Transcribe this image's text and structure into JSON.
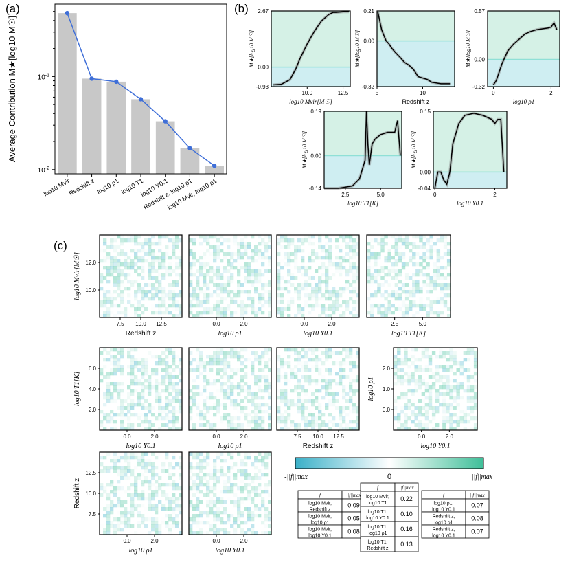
{
  "panel_labels": {
    "a": "(a)",
    "b": "(b)",
    "c": "(c)"
  },
  "colors": {
    "bar": "#c8c8c8",
    "line": "#3f6fd8",
    "pos_fill": "#d5f1e6",
    "neg_fill": "#cfeef2",
    "zero_line": "#8fe0d6",
    "pos": "#3fbf99",
    "neg": "#3ab0c8",
    "curve": "#000000",
    "band": "#888888"
  },
  "chart_data": [
    {
      "type": "bar",
      "panel": "(a)",
      "ylabel": "Average Contribution M★[log10 M☉]",
      "yscale": "log",
      "ylim": [
        0.009,
        0.6
      ],
      "ytick_labels": [
        "10^-2",
        "10^-1"
      ],
      "categories": [
        "log10 Mvir",
        "Redshift z",
        "log10 ρ1",
        "log10 T1",
        "log10 Υ0.1",
        "Redshift z, log10 ρ1",
        "log10 Mvir, log10 ρ1"
      ],
      "values": [
        0.48,
        0.095,
        0.088,
        0.057,
        0.033,
        0.017,
        0.011
      ],
      "series": [
        {
          "values": [
            0.48,
            0.095,
            0.088,
            0.057,
            0.033,
            0.017,
            0.011
          ]
        }
      ]
    },
    {
      "type": "line",
      "panel": "(b)",
      "subplots": [
        {
          "xlabel": "log10 Mvir[M☉]",
          "ylabel": "M★[log10 M☉]",
          "xlim": [
            7.5,
            13
          ],
          "ylim": [
            -0.93,
            2.67
          ],
          "xticks": [
            "10.0",
            "12.5"
          ],
          "yticks": [
            "2.67",
            "0.00",
            "-0.93"
          ],
          "x": [
            7.6,
            8.2,
            8.8,
            9.2,
            9.5,
            10.0,
            10.5,
            11.0,
            11.5,
            11.8,
            12.0,
            12.5,
            12.9
          ],
          "y": [
            -0.85,
            -0.82,
            -0.6,
            -0.1,
            0.4,
            1.1,
            1.7,
            2.2,
            2.5,
            2.6,
            2.6,
            2.63,
            2.63
          ]
        },
        {
          "xlabel": "Redshift z",
          "ylabel": "M★[log10 M☉]",
          "xlim": [
            5,
            13.5
          ],
          "ylim": [
            -0.32,
            0.21
          ],
          "xticks": [
            "5",
            "10"
          ],
          "yticks": [
            "0.21",
            "0.00",
            "-0.32"
          ],
          "x": [
            5.1,
            5.3,
            5.5,
            5.8,
            6.0,
            6.3,
            6.6,
            7.0,
            7.3,
            7.6,
            8.0,
            8.5,
            9.0,
            9.5,
            10.0,
            10.5,
            11.0,
            12.0,
            13.0
          ],
          "y": [
            0.2,
            0.14,
            0.08,
            0.03,
            0.0,
            -0.02,
            -0.05,
            -0.08,
            -0.1,
            -0.12,
            -0.15,
            -0.17,
            -0.2,
            -0.25,
            -0.26,
            -0.27,
            -0.29,
            -0.3,
            -0.3
          ]
        },
        {
          "xlabel": "log10 ρ1",
          "ylabel": "M★[log10 M☉]",
          "xlim": [
            -0.2,
            2.3
          ],
          "ylim": [
            -0.32,
            0.57
          ],
          "xticks": [
            "0",
            "2"
          ],
          "yticks": [
            "0.57",
            "0.00",
            "-0.32"
          ],
          "x": [
            0.0,
            0.1,
            0.2,
            0.3,
            0.5,
            0.7,
            0.9,
            1.1,
            1.3,
            1.5,
            1.7,
            1.9,
            2.0,
            2.1,
            2.2
          ],
          "y": [
            -0.3,
            -0.25,
            -0.15,
            -0.05,
            0.1,
            0.18,
            0.24,
            0.3,
            0.33,
            0.35,
            0.36,
            0.37,
            0.38,
            0.43,
            0.35
          ]
        },
        {
          "xlabel": "log10 T1[K]",
          "ylabel": "M★[log10 M☉]",
          "xlim": [
            1.0,
            6.5
          ],
          "ylim": [
            -0.14,
            0.19
          ],
          "xticks": [
            "2.5",
            "5.0"
          ],
          "yticks": [
            "0.19",
            "0.00",
            "-0.14"
          ],
          "x": [
            1.0,
            2.0,
            3.0,
            3.5,
            3.9,
            4.0,
            4.1,
            4.2,
            4.4,
            4.6,
            4.8,
            5.0,
            5.5,
            6.0,
            6.2,
            6.4
          ],
          "y": [
            -0.14,
            -0.14,
            -0.13,
            -0.1,
            -0.02,
            0.19,
            0.05,
            -0.04,
            0.05,
            0.07,
            0.08,
            0.09,
            0.1,
            0.1,
            0.15,
            0.0
          ]
        },
        {
          "xlabel": "log10 Υ0.1",
          "ylabel": "M★[log10 M☉]",
          "xlim": [
            -0.05,
            2.4
          ],
          "ylim": [
            -0.04,
            0.15
          ],
          "xticks": [
            "0",
            "2"
          ],
          "yticks": [
            "0.15",
            "0.00",
            "-0.04"
          ],
          "x": [
            0.0,
            0.1,
            0.2,
            0.3,
            0.4,
            0.5,
            0.6,
            0.8,
            1.0,
            1.3,
            1.6,
            1.9,
            2.0,
            2.1,
            2.2,
            2.3
          ],
          "y": [
            -0.04,
            0.0,
            0.0,
            -0.02,
            -0.03,
            0.0,
            0.07,
            0.12,
            0.14,
            0.145,
            0.14,
            0.13,
            0.12,
            0.13,
            0.13,
            0.0
          ]
        }
      ]
    },
    {
      "type": "heatmap",
      "panel": "(c)",
      "colorbar": {
        "min_label": "-||f||max",
        "mid_label": "0",
        "max_label": "||f||max"
      },
      "subplots": [
        {
          "xlabel": "Redshift z",
          "ylabel": "log10 Mvir[M☉]",
          "xticks": [
            "7.5",
            "10.0",
            "12.5"
          ],
          "yticks": [
            "12.0",
            "10.0"
          ]
        },
        {
          "xlabel": "log10 ρ1",
          "xticks": [
            "0.0",
            "2.0"
          ]
        },
        {
          "xlabel": "log10 Υ0.1",
          "xticks": [
            "0.0",
            "2.0"
          ]
        },
        {
          "xlabel": "log10 T1[K]",
          "xticks": [
            "2.5",
            "5.0"
          ]
        },
        {
          "xlabel": "log10 Υ0.1",
          "ylabel": "log10 T1[K]",
          "xticks": [
            "0.0",
            "2.0"
          ],
          "yticks": [
            "6.0",
            "4.0",
            "2.0"
          ]
        },
        {
          "xlabel": "log10 ρ1",
          "xticks": [
            "0.0",
            "2.0"
          ]
        },
        {
          "xlabel": "Redshift z",
          "xticks": [
            "7.5",
            "10.0",
            "12.5"
          ]
        },
        {
          "xlabel": "log10 Υ0.1",
          "ylabel": "log10 ρ1",
          "xticks": [
            "0.0",
            "2.0"
          ],
          "yticks": [
            "2.0",
            "1.0",
            "0.0"
          ]
        },
        {
          "xlabel": "log10 ρ1",
          "ylabel": "Redshift z",
          "xticks": [
            "0.0",
            "2.0"
          ],
          "yticks": [
            "12.5",
            "10.0",
            "7.5"
          ]
        },
        {
          "xlabel": "log10 Υ0.1",
          "xticks": [
            "0.0",
            "2.0"
          ]
        }
      ]
    },
    {
      "type": "table",
      "panel": "(c)",
      "header": [
        "f",
        "||f||max"
      ],
      "tables": [
        {
          "rows": [
            [
              "log10 Mvir, Redshift z",
              "0.09"
            ],
            [
              "log10 Mvir, log10 ρ1",
              "0.05"
            ],
            [
              "log10 Mvir, log10 Υ0.1",
              "0.08"
            ]
          ]
        },
        {
          "rows": [
            [
              "log10 Mvir, log10 T1",
              "0.22"
            ],
            [
              "log10 T1, log10 Υ0.1",
              "0.10"
            ],
            [
              "log10 T1, log10 ρ1",
              "0.16"
            ],
            [
              "log10 T1, Redshift z",
              "0.13"
            ]
          ]
        },
        {
          "rows": [
            [
              "log10 ρ1, log10 Υ0.1",
              "0.07"
            ],
            [
              "Redshift z, log10 ρ1",
              "0.08"
            ],
            [
              "Redshift z, log10 Υ0.1",
              "0.07"
            ]
          ]
        }
      ]
    }
  ]
}
